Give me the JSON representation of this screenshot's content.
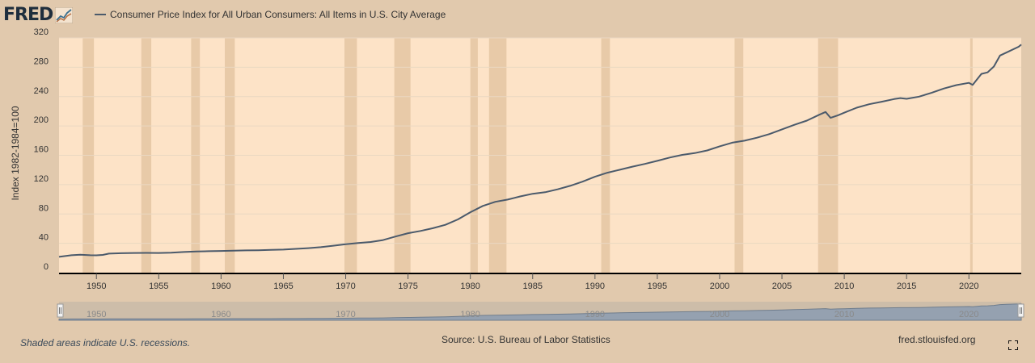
{
  "header": {
    "logo_text": "FRED",
    "legend_label": "Consumer Price Index for All Urban Consumers: All Items in U.S. City Average"
  },
  "footer": {
    "note": "Shaded areas indicate U.S. recessions.",
    "source": "Source: U.S. Bureau of Labor Statistics",
    "site": "fred.stlouisfed.org"
  },
  "colors": {
    "background": "#e1c9ad",
    "plot_area": "#fde3c7",
    "recession": "#e8caa8",
    "line": "#4b5a6b",
    "navigator": "#95a1b0"
  },
  "icons": {
    "logo": "fred-chart-icon",
    "fullscreen": "expand-icon"
  },
  "chart_data": {
    "type": "line",
    "title": "",
    "xlabel": "",
    "ylabel": "Index 1982-1984=100",
    "xlim": [
      1947.0,
      2024.2
    ],
    "ylim": [
      0,
      320
    ],
    "x_ticks": [
      1950,
      1955,
      1960,
      1965,
      1970,
      1975,
      1980,
      1985,
      1990,
      1995,
      2000,
      2005,
      2010,
      2015,
      2020
    ],
    "y_ticks": [
      0,
      40,
      80,
      120,
      160,
      200,
      240,
      280,
      320
    ],
    "grid": true,
    "legend_position": "top-left",
    "recessions": [
      [
        1948.9,
        1949.8
      ],
      [
        1953.6,
        1954.4
      ],
      [
        1957.6,
        1958.3
      ],
      [
        1960.3,
        1961.1
      ],
      [
        1969.9,
        1970.9
      ],
      [
        1973.9,
        1975.2
      ],
      [
        1980.0,
        1980.6
      ],
      [
        1981.5,
        1982.9
      ],
      [
        1990.5,
        1991.2
      ],
      [
        2001.2,
        2001.9
      ],
      [
        2007.9,
        2009.5
      ],
      [
        2020.1,
        2020.3
      ]
    ],
    "series": [
      {
        "x": [
          1947.0,
          1948.0,
          1948.7,
          1949.5,
          1950.0,
          1950.5,
          1951.0,
          1952.0,
          1953.0,
          1954.0,
          1955.0,
          1956.0,
          1957.0,
          1958.0,
          1959.0,
          1960.0,
          1961.0,
          1962.0,
          1963.0,
          1964.0,
          1965.0,
          1966.0,
          1967.0,
          1968.0,
          1969.0,
          1970.0,
          1971.0,
          1972.0,
          1973.0,
          1974.0,
          1975.0,
          1976.0,
          1977.0,
          1978.0,
          1979.0,
          1980.0,
          1981.0,
          1982.0,
          1983.0,
          1984.0,
          1985.0,
          1986.0,
          1987.0,
          1988.0,
          1989.0,
          1990.0,
          1991.0,
          1992.0,
          1993.0,
          1994.0,
          1995.0,
          1996.0,
          1997.0,
          1998.0,
          1999.0,
          2000.0,
          2001.0,
          2002.0,
          2003.0,
          2004.0,
          2005.0,
          2006.0,
          2007.0,
          2008.0,
          2008.5,
          2008.9,
          2009.5,
          2010.0,
          2011.0,
          2012.0,
          2013.0,
          2014.0,
          2014.5,
          2015.0,
          2016.0,
          2017.0,
          2018.0,
          2019.0,
          2020.0,
          2020.3,
          2021.0,
          2021.5,
          2022.0,
          2022.5,
          2023.0,
          2024.0,
          2024.2
        ],
        "values": [
          21.5,
          23.7,
          24.4,
          23.8,
          23.6,
          24.2,
          25.9,
          26.5,
          26.8,
          26.9,
          26.8,
          27.2,
          28.1,
          28.9,
          29.2,
          29.6,
          29.9,
          30.3,
          30.6,
          31.0,
          31.5,
          32.4,
          33.4,
          34.8,
          36.7,
          38.8,
          40.5,
          41.8,
          44.4,
          49.3,
          53.8,
          56.9,
          60.6,
          65.2,
          72.6,
          82.4,
          90.9,
          96.5,
          99.6,
          103.9,
          107.6,
          109.6,
          113.6,
          118.3,
          124.0,
          130.7,
          136.2,
          140.3,
          144.5,
          148.2,
          152.4,
          156.9,
          160.5,
          163.0,
          166.6,
          172.2,
          177.1,
          179.9,
          184.0,
          188.9,
          195.3,
          201.6,
          207.3,
          215.3,
          219.0,
          211.0,
          214.5,
          218.1,
          224.9,
          229.6,
          233.0,
          236.7,
          238.0,
          237.0,
          240.0,
          245.1,
          251.1,
          255.7,
          258.8,
          256.0,
          271.0,
          273.0,
          281.0,
          296.0,
          300.0,
          308.0,
          311.0
        ]
      }
    ]
  },
  "navigator": {
    "x_ticks": [
      1950,
      1960,
      1970,
      1980,
      1990,
      2000,
      2010,
      2020
    ]
  }
}
